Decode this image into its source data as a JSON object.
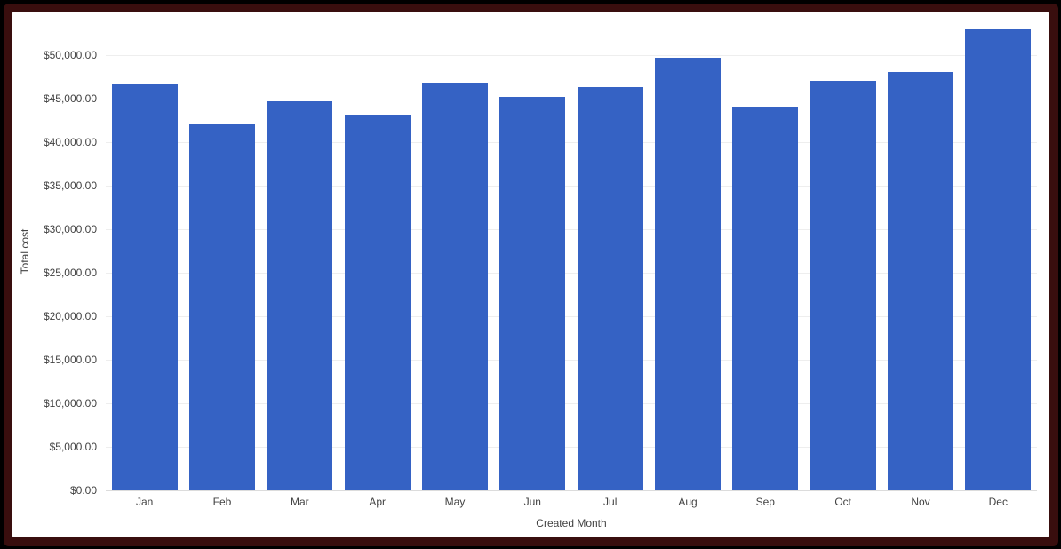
{
  "frame": {
    "outer_color": "#000000",
    "border_color": "#390e0e",
    "card_background": "#ffffff",
    "card_border_color": "#c9c9c9"
  },
  "chart_data": {
    "type": "bar",
    "title": "",
    "categories": [
      "Jan",
      "Feb",
      "Mar",
      "Apr",
      "May",
      "Jun",
      "Jul",
      "Aug",
      "Sep",
      "Oct",
      "Nov",
      "Dec"
    ],
    "values": [
      46800,
      42100,
      44800,
      43200,
      46900,
      45300,
      46400,
      49800,
      44200,
      47100,
      48200,
      53100
    ],
    "series_name": "Total cost",
    "xlabel": "Created Month",
    "ylabel": "Total cost",
    "ylim": [
      0,
      55000
    ],
    "ytick_step": 5000,
    "ytick_labels": [
      "$0.00",
      "$5,000.00",
      "$10,000.00",
      "$15,000.00",
      "$20,000.00",
      "$25,000.00",
      "$30,000.00",
      "$35,000.00",
      "$40,000.00",
      "$45,000.00",
      "$50,000.00"
    ],
    "grid": true,
    "legend": "none",
    "bar_color": "#3562c4",
    "gridline_color": "#eeeeee",
    "baseline_color": "#dcdcdc",
    "axis_text_color": "#424242"
  }
}
